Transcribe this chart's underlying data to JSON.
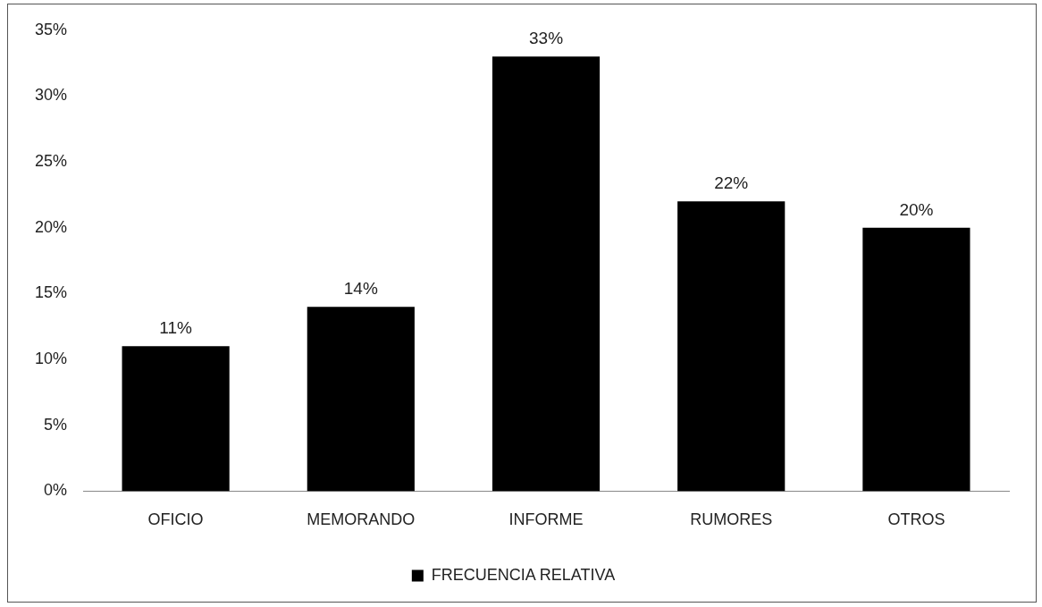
{
  "chart_data": {
    "type": "bar",
    "categories": [
      "OFICIO",
      "MEMORANDO",
      "INFORME",
      "RUMORES",
      "OTROS"
    ],
    "series": [
      {
        "name": "FRECUENCIA RELATIVA",
        "color": "#000000",
        "values": [
          11,
          14,
          33,
          22,
          20
        ],
        "value_labels": [
          "11%",
          "14%",
          "33%",
          "22%",
          "20%"
        ]
      }
    ],
    "ylim": [
      0,
      35
    ],
    "yticks": [
      {
        "value": 0,
        "label": "0%"
      },
      {
        "value": 5,
        "label": "5%"
      },
      {
        "value": 10,
        "label": "10%"
      },
      {
        "value": 15,
        "label": "15%"
      },
      {
        "value": 20,
        "label": "20%"
      },
      {
        "value": 25,
        "label": "25%"
      },
      {
        "value": 30,
        "label": "30%"
      },
      {
        "value": 35,
        "label": "35%"
      }
    ],
    "grid": false,
    "legend": "bottom"
  }
}
